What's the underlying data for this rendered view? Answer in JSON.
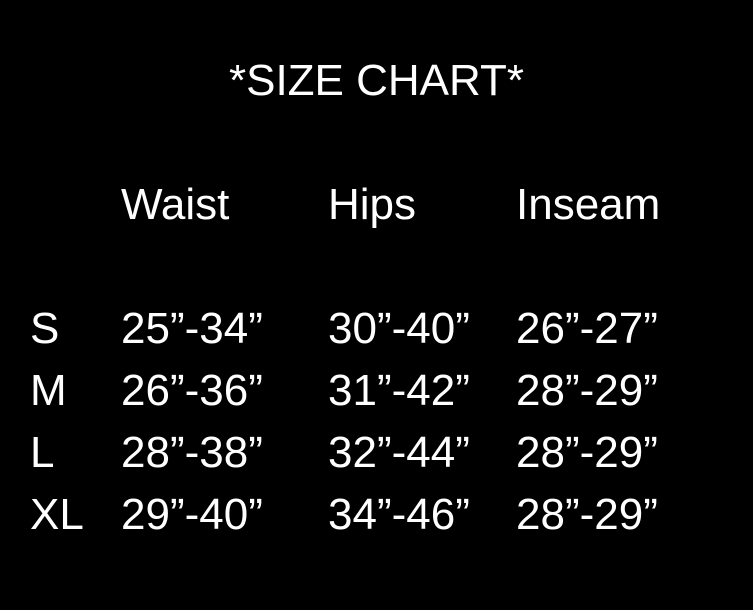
{
  "page": {
    "background_color": "#000000",
    "text_color": "#ffffff"
  },
  "title": "*SIZE CHART*",
  "table": {
    "columns": [
      "Waist",
      "Hips",
      "Inseam"
    ],
    "rows": [
      {
        "size": "S",
        "waist": "25”-34”",
        "hips": "30”-40”",
        "inseam": "26”-27”"
      },
      {
        "size": "M",
        "waist": "26”-36”",
        "hips": "31”-42”",
        "inseam": "28”-29”"
      },
      {
        "size": "L",
        "waist": "28”-38”",
        "hips": "32”-44”",
        "inseam": "28”-29”"
      },
      {
        "size": "XL",
        "waist": "29”-40”",
        "hips": "34”-46”",
        "inseam": "28”-29”"
      }
    ]
  }
}
